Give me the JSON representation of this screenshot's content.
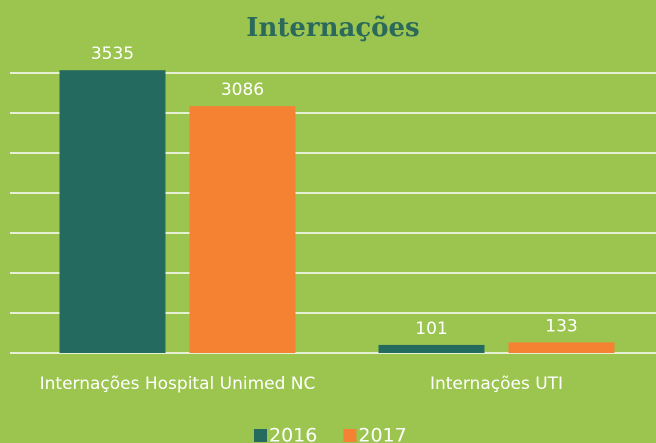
{
  "chart_data": {
    "type": "bar",
    "title": "Internações",
    "categories": [
      "Internações Hospital Unimed NC",
      "Internações UTI"
    ],
    "series": [
      {
        "name": "2016",
        "color": "#256a5e",
        "values": [
          3535,
          101
        ]
      },
      {
        "name": "2017",
        "color": "#f58233",
        "values": [
          3086,
          133
        ]
      }
    ],
    "ylim": [
      0,
      3500
    ],
    "yticks": [
      0,
      500,
      1000,
      1500,
      2000,
      2500,
      3000,
      3500
    ],
    "grid": true
  }
}
